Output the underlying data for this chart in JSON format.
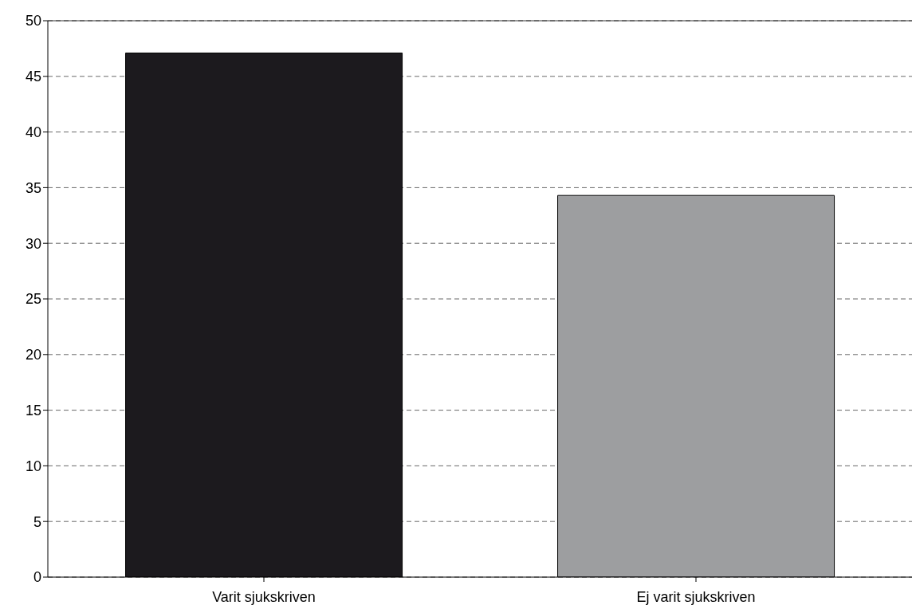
{
  "chart_data": {
    "type": "bar",
    "categories": [
      "Varit sjukskriven",
      "Ej varit sjukskriven"
    ],
    "values": [
      47.1,
      34.3
    ],
    "colors": [
      "#1c1a1e",
      "#9d9ea0"
    ],
    "ylim": [
      0,
      50
    ],
    "yticks": [
      0,
      5,
      10,
      15,
      20,
      25,
      30,
      35,
      40,
      45,
      50
    ],
    "grid": "y"
  }
}
